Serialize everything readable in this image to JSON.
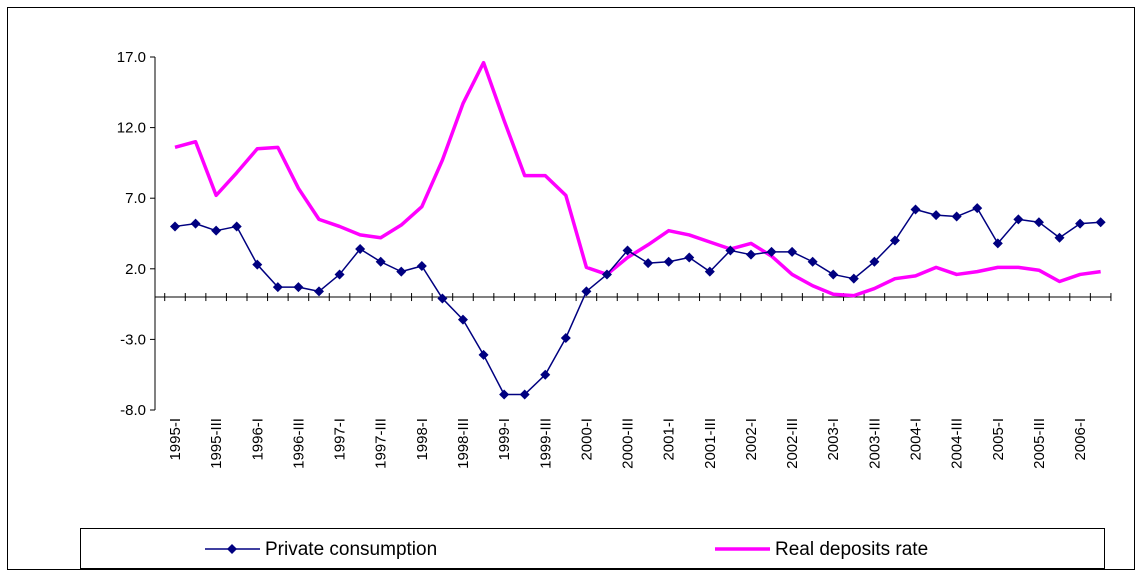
{
  "chart_data": {
    "type": "line",
    "categories": [
      "1995-I",
      null,
      "1995-III",
      null,
      "1996-I",
      null,
      "1996-III",
      null,
      "1997-I",
      null,
      "1997-III",
      null,
      "1998-I",
      null,
      "1998-III",
      null,
      "1999-I",
      null,
      "1999-III",
      null,
      "2000-I",
      null,
      "2000-III",
      null,
      "2001-I",
      null,
      "2001-III",
      null,
      "2002-I",
      null,
      "2002-III",
      null,
      "2003-I",
      null,
      "2003-III",
      null,
      "2004-I",
      null,
      "2004-III",
      null,
      "2005-I",
      null,
      "2005-III",
      null,
      "2006-I",
      null
    ],
    "series": [
      {
        "name": "Private consumption",
        "color": "#000080",
        "marker": "diamond",
        "values": [
          5.0,
          5.2,
          4.7,
          5.0,
          2.3,
          0.7,
          0.7,
          0.4,
          1.6,
          3.4,
          2.5,
          1.8,
          2.2,
          -0.1,
          -1.6,
          -4.1,
          -6.9,
          -6.9,
          -5.5,
          -2.9,
          0.4,
          1.6,
          3.3,
          2.4,
          2.5,
          2.8,
          1.8,
          3.3,
          3.0,
          3.2,
          3.2,
          2.5,
          1.6,
          1.3,
          2.5,
          4.0,
          6.2,
          5.8,
          5.7,
          6.3,
          3.8,
          5.5,
          5.3,
          4.2,
          5.2,
          5.3
        ]
      },
      {
        "name": "Real deposits rate",
        "color": "#ff00ff",
        "values": [
          10.6,
          11.0,
          7.2,
          8.8,
          10.5,
          10.6,
          7.7,
          5.5,
          5.0,
          4.4,
          4.2,
          5.1,
          6.4,
          9.7,
          13.7,
          16.6,
          12.5,
          8.6,
          8.6,
          7.2,
          2.1,
          1.6,
          2.8,
          3.7,
          4.7,
          4.4,
          3.9,
          3.4,
          3.8,
          2.9,
          1.6,
          0.8,
          0.2,
          0.1,
          0.6,
          1.3,
          1.5,
          2.1,
          1.6,
          1.8,
          2.1,
          2.1,
          1.9,
          1.1,
          1.6,
          1.8
        ]
      }
    ],
    "ylim": [
      -8,
      17
    ],
    "yticks": [
      {
        "value": -8,
        "label": "-8.0"
      },
      {
        "value": -3,
        "label": "-3.0"
      },
      {
        "value": 2,
        "label": "2.0"
      },
      {
        "value": 7,
        "label": "7.0"
      },
      {
        "value": 12,
        "label": "12.0"
      },
      {
        "value": 17,
        "label": "17.0"
      }
    ],
    "grid": false,
    "legend": "bottom"
  }
}
